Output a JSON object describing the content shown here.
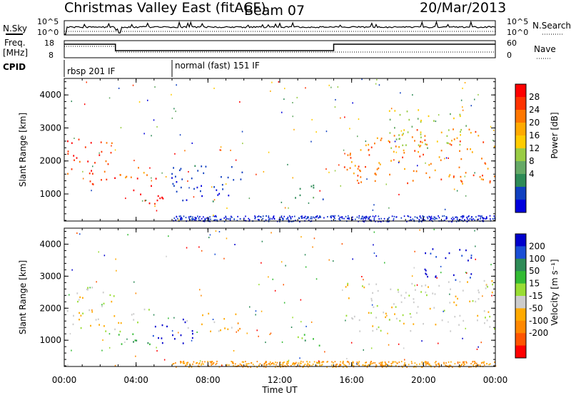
{
  "header": {
    "title": "Christmas Valley East (fitACF)",
    "beam": "Beam 07",
    "date": "20/Mar/2013"
  },
  "params": {
    "nsky_label": "N.Sky",
    "nsearch_label": "N.Search",
    "freq_label_1": "Freq.",
    "freq_label_2": "[MHz]",
    "nave_label": "Nave",
    "cpid_label": "CPID",
    "noise_ticks_left": [
      "10^5",
      "10^0"
    ],
    "noise_ticks_right": [
      "10^5",
      "10^0"
    ],
    "freq_ticks": [
      "18",
      "8"
    ],
    "nave_ticks": [
      "60",
      "0"
    ],
    "cpid_segments": [
      {
        "label": "rbsp 201 IF",
        "start_hour": 0,
        "end_hour": 6.0
      },
      {
        "label": "normal (fast) 151 IF",
        "start_hour": 6.0,
        "end_hour": 24
      }
    ],
    "freq_mhz": [
      {
        "from": 0,
        "to": 2.85,
        "value": 15.5
      },
      {
        "from": 2.85,
        "to": 15.0,
        "value": 11.0
      },
      {
        "from": 15.0,
        "to": 24,
        "value": 15.5
      }
    ],
    "nave": [
      {
        "from": 0,
        "to": 2.85,
        "value": 40
      },
      {
        "from": 2.85,
        "to": 24,
        "value": 20
      }
    ]
  },
  "colors": {
    "power_scale": [
      "#0000dd",
      "#1040c0",
      "#2e8b57",
      "#66aa66",
      "#99cc44",
      "#ffcc00",
      "#ffaa00",
      "#ff7700",
      "#ff3300",
      "#ff0000"
    ],
    "velocity_scale": [
      "#0000cc",
      "#1a4fd6",
      "#2e8b57",
      "#33bb33",
      "#99dd33",
      "#cccccc",
      "#ffaa00",
      "#ff8800",
      "#ff5500",
      "#ff0000"
    ],
    "ground_scatter": "#b4b4b4"
  },
  "chart_data": [
    {
      "type": "heatmap",
      "name": "power",
      "ylabel": "Slant Range [km]",
      "xlabel": "Time UT",
      "xlim_hours": [
        0,
        24
      ],
      "ylim_km": [
        180,
        4500
      ],
      "x_tick_labels": [
        "00:00",
        "04:00",
        "08:00",
        "12:00",
        "16:00",
        "20:00",
        "00:00"
      ],
      "y_tick_labels": [
        "1000",
        "2000",
        "3000",
        "4000"
      ],
      "y_ticks": [
        1000,
        2000,
        3000,
        4000
      ],
      "colorbar": {
        "label": "Power [dB]",
        "ticks": [
          "28",
          "24",
          "20",
          "16",
          "12",
          "8",
          "4"
        ]
      },
      "regions": [
        {
          "t0": 0.0,
          "t1": 2.8,
          "r0": 1300,
          "r1": 2700,
          "level": 8
        },
        {
          "t0": 2.9,
          "t1": 4.8,
          "r0": 1500,
          "r1": 2000,
          "level": 7
        },
        {
          "t0": 3.8,
          "t1": 5.8,
          "r0": 650,
          "r1": 1500,
          "level": 9
        },
        {
          "t0": 5.8,
          "t1": 10.0,
          "r0": 800,
          "r1": 1900,
          "level": 1
        },
        {
          "t0": 12.8,
          "t1": 14.5,
          "r0": 750,
          "r1": 1300,
          "level": 2
        },
        {
          "t0": 15.5,
          "t1": 24.0,
          "r0": 1300,
          "r1": 3000,
          "level": 7
        },
        {
          "t0": 18.0,
          "t1": 22.5,
          "r0": 2400,
          "r1": 3600,
          "level": 4
        }
      ]
    },
    {
      "type": "heatmap",
      "name": "velocity",
      "ylabel": "Slant Range [km]",
      "xlabel": "Time UT",
      "xlim_hours": [
        0,
        24
      ],
      "ylim_km": [
        180,
        4500
      ],
      "x_tick_labels": [
        "00:00",
        "04:00",
        "08:00",
        "12:00",
        "16:00",
        "20:00",
        "00:00"
      ],
      "y_tick_labels": [
        "1000",
        "2000",
        "3000",
        "4000"
      ],
      "y_ticks": [
        1000,
        2000,
        3000,
        4000
      ],
      "colorbar": {
        "label": "Velocity [m s⁻¹]",
        "ticks": [
          "200",
          "100",
          "50",
          "15",
          "-15",
          "-50",
          "-100",
          "-200"
        ]
      },
      "regions": [
        {
          "t0": 0.0,
          "t1": 2.8,
          "r0": 1300,
          "r1": 2700,
          "level": 5
        },
        {
          "t0": 2.9,
          "t1": 4.8,
          "r0": 1500,
          "r1": 2000,
          "level": 5
        },
        {
          "t0": 3.0,
          "t1": 4.8,
          "r0": 700,
          "r1": 1300,
          "level": 3
        },
        {
          "t0": 4.8,
          "t1": 7.2,
          "r0": 900,
          "r1": 1700,
          "level": 0
        },
        {
          "t0": 6.5,
          "t1": 9.8,
          "r0": 1300,
          "r1": 1900,
          "level": 6
        },
        {
          "t0": 12.8,
          "t1": 14.5,
          "r0": 750,
          "r1": 1200,
          "level": 3
        },
        {
          "t0": 15.5,
          "t1": 24.0,
          "r0": 1300,
          "r1": 2900,
          "level": 5
        },
        {
          "t0": 20.0,
          "t1": 22.8,
          "r0": 2900,
          "r1": 3900,
          "level": 0
        }
      ]
    }
  ]
}
